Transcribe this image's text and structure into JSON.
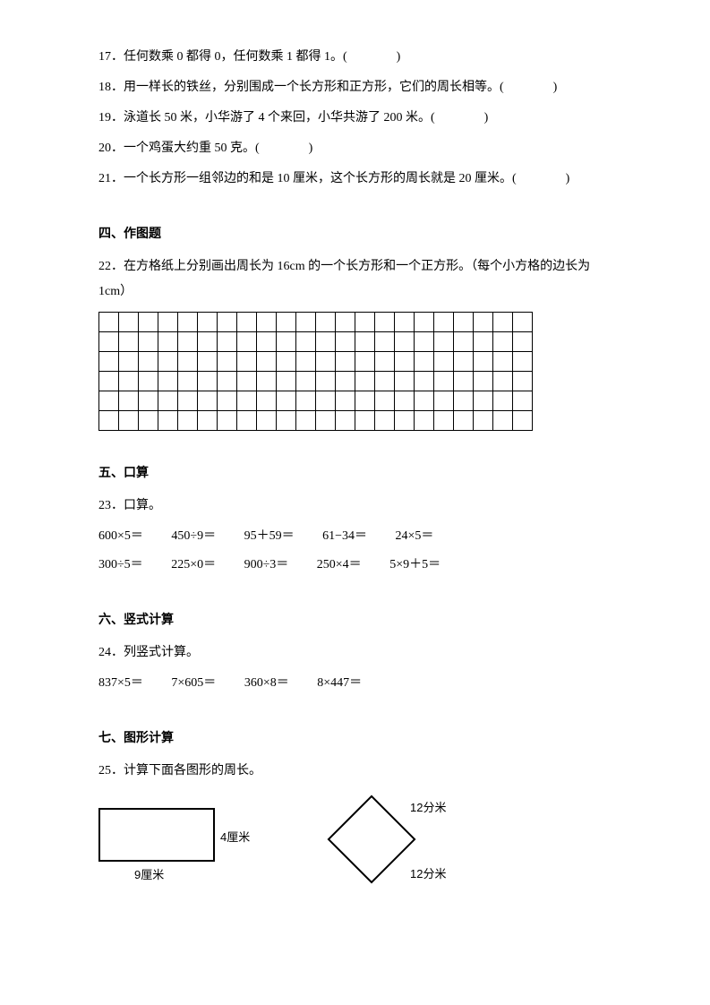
{
  "questions": {
    "q17": {
      "num": "17．",
      "text": "任何数乘 0 都得 0，任何数乘 1 都得 1。"
    },
    "q18": {
      "num": "18．",
      "text": "用一样长的铁丝，分别围成一个长方形和正方形，它们的周长相等。"
    },
    "q19": {
      "num": "19．",
      "text": "泳道长 50 米，小华游了 4 个来回，小华共游了 200 米。"
    },
    "q20": {
      "num": "20．",
      "text": "一个鸡蛋大约重 50 克。"
    },
    "q21": {
      "num": "21．",
      "text": "一个长方形一组邻边的和是 10 厘米，这个长方形的周长就是 20 厘米。"
    }
  },
  "section4": {
    "title": "四、作图题",
    "q22": {
      "num": "22．",
      "text": "在方格纸上分别画出周长为 16cm 的一个长方形和一个正方形。（每个小方格的边长为 1cm）"
    },
    "grid_rows": 6,
    "grid_cols": 22
  },
  "section5": {
    "title": "五、口算",
    "q23_num": "23．",
    "q23_text": "口算。",
    "row1": [
      "600×5＝",
      "450÷9＝",
      "95＋59＝",
      "61−34＝",
      "24×5＝"
    ],
    "row2": [
      "300÷5＝",
      "225×0＝",
      "900÷3＝",
      "250×4＝",
      "5×9＋5＝"
    ]
  },
  "section6": {
    "title": "六、竖式计算",
    "q24_num": "24．",
    "q24_text": "列竖式计算。",
    "items": [
      "837×5＝",
      "7×605＝",
      "360×8＝",
      "8×447＝"
    ]
  },
  "section7": {
    "title": "七、图形计算",
    "q25_num": "25．",
    "q25_text": "计算下面各图形的周长。",
    "rect": {
      "width_label": "9厘米",
      "height_label": "4厘米"
    },
    "diamond": {
      "top_label": "12分米",
      "bottom_label": "12分米"
    }
  }
}
